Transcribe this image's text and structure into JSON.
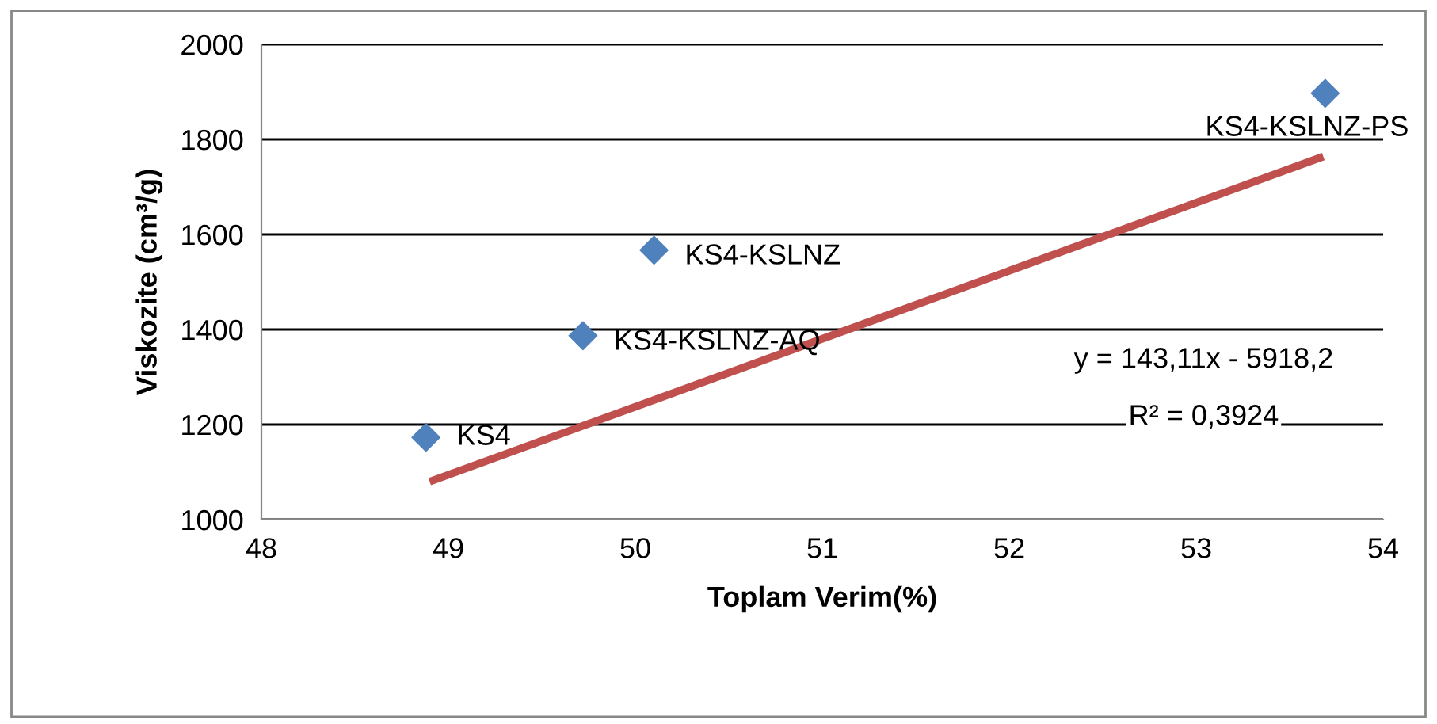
{
  "chart_data": {
    "type": "scatter",
    "xlabel": "Toplam Verim(%)",
    "ylabel": "Viskozite (cm³/g)",
    "xlim": [
      48,
      54
    ],
    "xticks": [
      48,
      49,
      50,
      51,
      52,
      53,
      54
    ],
    "ylim": [
      1000,
      2000
    ],
    "yticks": [
      1000,
      1200,
      1400,
      1600,
      1800,
      2000
    ],
    "grid": "y",
    "legend": false,
    "series": [
      {
        "marker": "diamond",
        "color": "#4f81bd",
        "x": [
          48.88,
          49.72,
          50.1,
          53.69
        ],
        "values": [
          1173,
          1387,
          1567,
          1897
        ]
      },
      {
        "type": "line",
        "color": "#c0504d",
        "x": [
          48.9,
          53.68
        ],
        "values": [
          1080,
          1764
        ]
      }
    ],
    "annotations": [
      {
        "text": "KS4",
        "x": 48.88,
        "y": 1173
      },
      {
        "text": "KS4-KSLNZ-AQ",
        "x": 49.72,
        "y": 1387
      },
      {
        "text": "KS4-KSLNZ",
        "x": 50.1,
        "y": 1567
      },
      {
        "text": "KS4-KSLNZ-PS",
        "x": 53.69,
        "y": 1897
      },
      "y = 143,11x - 5918,2",
      "R² = 0,3924"
    ]
  }
}
